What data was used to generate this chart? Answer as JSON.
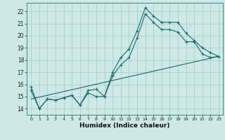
{
  "xlabel": "Humidex (Indice chaleur)",
  "xlim": [
    -0.5,
    23.5
  ],
  "ylim": [
    13.5,
    22.7
  ],
  "xticks": [
    0,
    1,
    2,
    3,
    4,
    5,
    6,
    7,
    8,
    9,
    10,
    11,
    12,
    13,
    14,
    15,
    16,
    17,
    18,
    19,
    20,
    21,
    22,
    23
  ],
  "yticks": [
    14,
    15,
    16,
    17,
    18,
    19,
    20,
    21,
    22
  ],
  "bg_color": "#cde8e5",
  "grid_color": "#aacfcc",
  "line_color": "#1a6b6b",
  "line1_x": [
    0,
    1,
    2,
    3,
    4,
    5,
    6,
    7,
    8,
    9,
    10,
    11,
    12,
    13,
    14,
    15,
    16,
    17,
    18,
    19,
    20,
    21,
    22,
    23
  ],
  "line1_y": [
    15.8,
    14.0,
    14.8,
    14.7,
    14.9,
    15.1,
    14.3,
    15.5,
    15.6,
    15.0,
    17.0,
    18.2,
    18.9,
    20.4,
    22.3,
    21.6,
    21.1,
    21.1,
    21.1,
    20.2,
    19.6,
    19.0,
    18.6,
    18.3
  ],
  "line2_x": [
    0,
    1,
    2,
    3,
    4,
    5,
    6,
    7,
    8,
    9,
    10,
    11,
    12,
    13,
    14,
    15,
    16,
    17,
    18,
    19,
    20,
    21,
    22,
    23
  ],
  "line2_y": [
    15.5,
    14.0,
    14.8,
    14.7,
    14.9,
    15.1,
    14.3,
    15.3,
    15.0,
    15.0,
    16.7,
    17.6,
    18.2,
    19.8,
    21.8,
    21.1,
    20.5,
    20.5,
    20.3,
    19.5,
    19.5,
    18.5,
    18.2,
    18.3
  ],
  "line3_x": [
    0,
    23
  ],
  "line3_y": [
    14.8,
    18.3
  ]
}
